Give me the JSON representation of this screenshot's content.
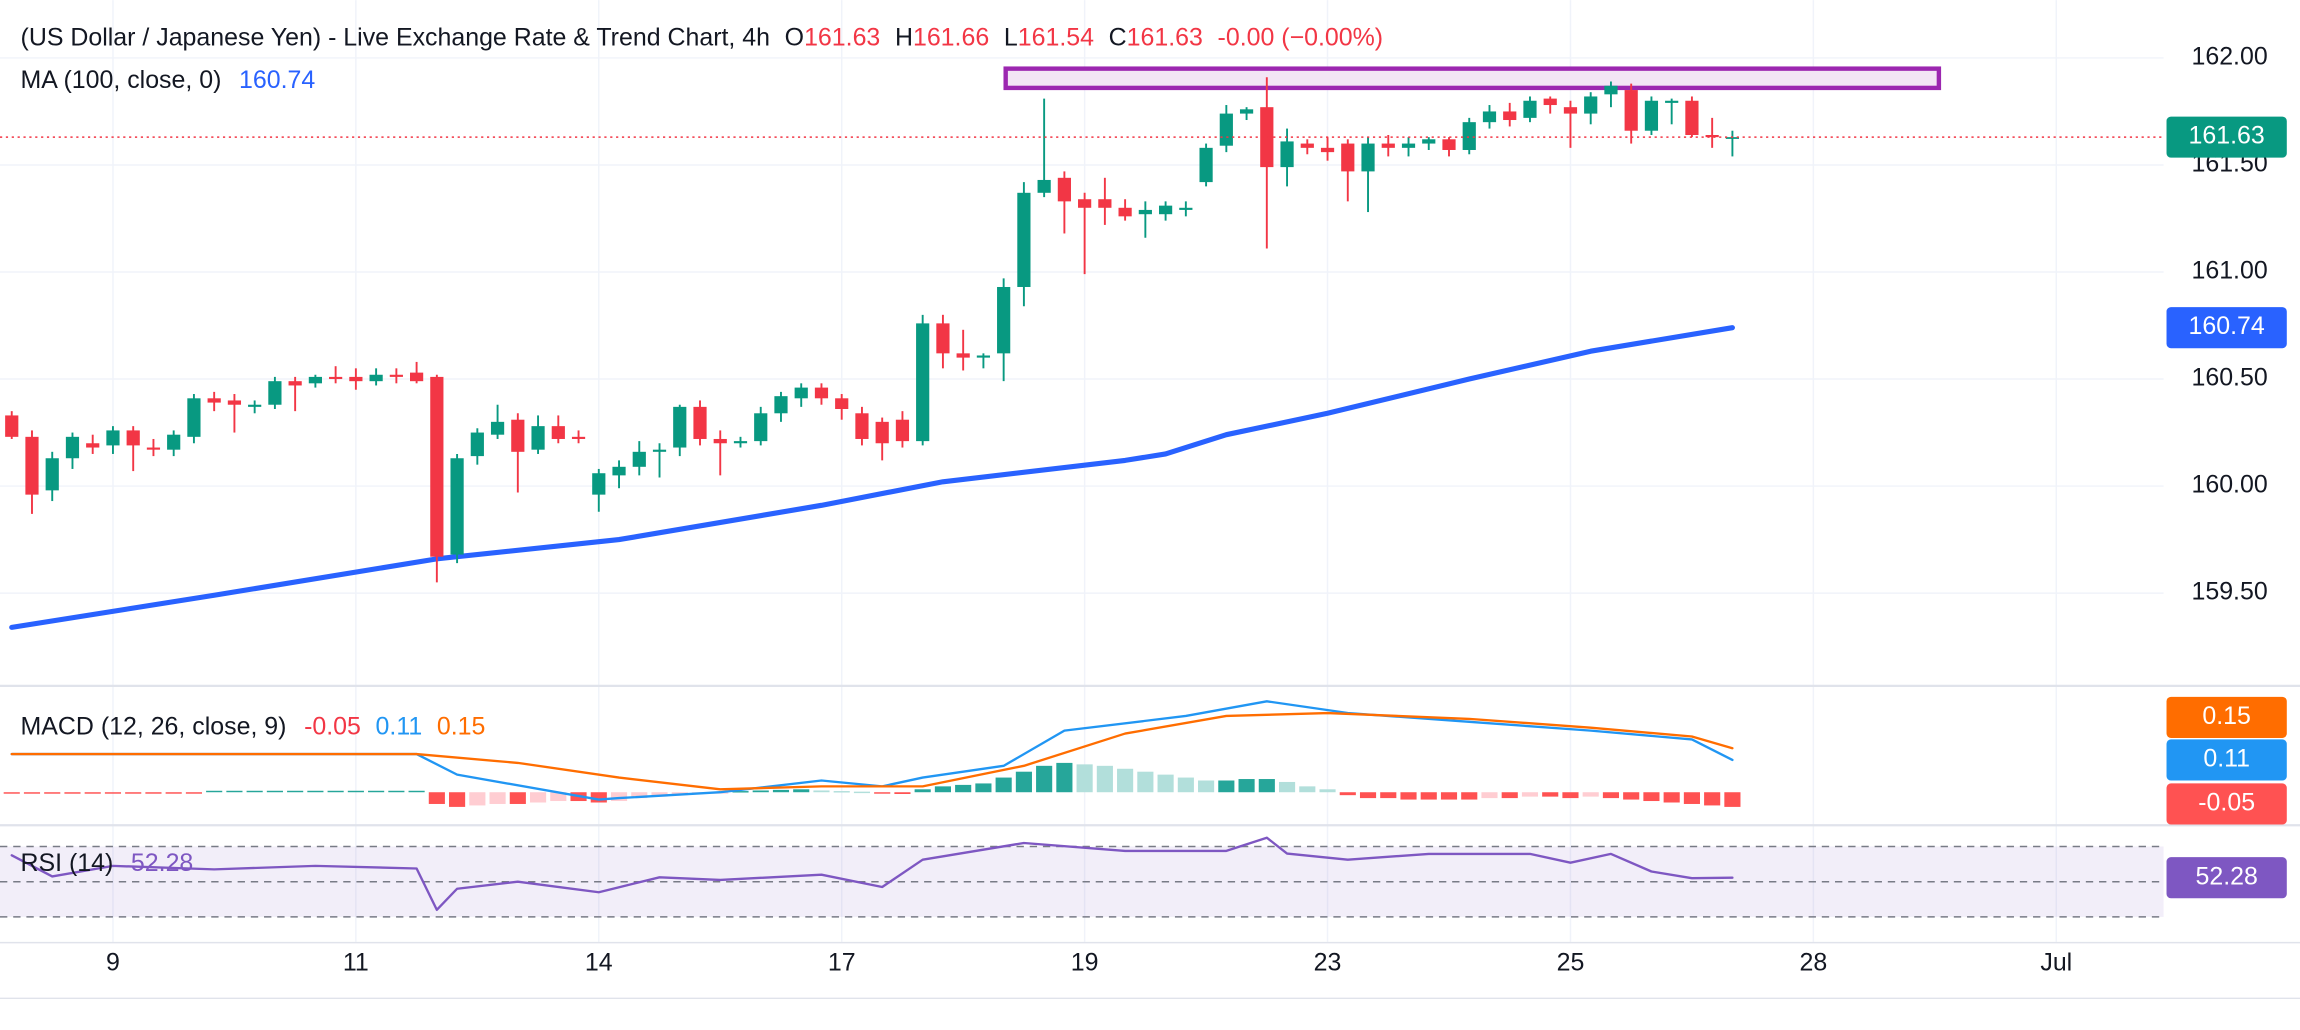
{
  "chart_data": {
    "type": "candlestick",
    "title": "(US Dollar / Japanese Yen) - Live Exchange Rate & Trend Chart, 4h",
    "ohlc_letters": [
      "O",
      "H",
      "L",
      "C"
    ],
    "change": "-0.00 (−0.00%)",
    "up_color": "#089981",
    "down_color": "#f23645",
    "xlim": [
      -0.58,
      106.3
    ],
    "ylim": [
      159.07,
      162.27
    ],
    "grid": true,
    "yticks": [
      {
        "value": 162,
        "label": "162.00"
      },
      {
        "value": 161.5,
        "label": "161.50"
      },
      {
        "value": 161,
        "label": "161.00"
      },
      {
        "value": 160.5,
        "label": "160.50"
      },
      {
        "value": 160,
        "label": "160.00"
      },
      {
        "value": 159.5,
        "label": "159.50"
      }
    ],
    "xticks": [
      {
        "value": 5,
        "label": "9"
      },
      {
        "value": 17,
        "label": "11"
      },
      {
        "value": 29,
        "label": "14"
      },
      {
        "value": 41,
        "label": "17"
      },
      {
        "value": 53,
        "label": "19"
      },
      {
        "value": 65,
        "label": "23"
      },
      {
        "value": 77,
        "label": "25"
      },
      {
        "value": 89,
        "label": "28"
      },
      {
        "value": 101,
        "label": "Jul"
      }
    ],
    "candles": [
      [
        160.33,
        160.35,
        160.22,
        160.23
      ],
      [
        160.23,
        160.26,
        159.87,
        159.96
      ],
      [
        159.98,
        160.16,
        159.93,
        160.13
      ],
      [
        160.13,
        160.25,
        160.08,
        160.23
      ],
      [
        160.2,
        160.24,
        160.15,
        160.18
      ],
      [
        160.19,
        160.28,
        160.15,
        160.26
      ],
      [
        160.26,
        160.28,
        160.07,
        160.19
      ],
      [
        160.18,
        160.22,
        160.14,
        160.17
      ],
      [
        160.17,
        160.26,
        160.14,
        160.24
      ],
      [
        160.23,
        160.43,
        160.2,
        160.41
      ],
      [
        160.41,
        160.44,
        160.35,
        160.39
      ],
      [
        160.4,
        160.43,
        160.25,
        160.38
      ],
      [
        160.37,
        160.4,
        160.34,
        160.38
      ],
      [
        160.38,
        160.51,
        160.36,
        160.49
      ],
      [
        160.49,
        160.51,
        160.35,
        160.47
      ],
      [
        160.48,
        160.52,
        160.46,
        160.51
      ],
      [
        160.51,
        160.56,
        160.48,
        160.5
      ],
      [
        160.51,
        160.55,
        160.45,
        160.49
      ],
      [
        160.49,
        160.55,
        160.47,
        160.52
      ],
      [
        160.52,
        160.55,
        160.48,
        160.51
      ],
      [
        160.53,
        160.58,
        160.48,
        160.49
      ],
      [
        160.51,
        160.52,
        159.55,
        159.67
      ],
      [
        159.68,
        160.15,
        159.64,
        160.13
      ],
      [
        160.14,
        160.27,
        160.1,
        160.25
      ],
      [
        160.24,
        160.38,
        160.22,
        160.3
      ],
      [
        160.31,
        160.34,
        159.97,
        160.16
      ],
      [
        160.17,
        160.33,
        160.15,
        160.28
      ],
      [
        160.28,
        160.33,
        160.2,
        160.22
      ],
      [
        160.23,
        160.26,
        160.2,
        160.22
      ],
      [
        159.96,
        160.08,
        159.88,
        160.06
      ],
      [
        160.05,
        160.12,
        159.99,
        160.09
      ],
      [
        160.09,
        160.21,
        160.05,
        160.16
      ],
      [
        160.16,
        160.2,
        160.04,
        160.17
      ],
      [
        160.18,
        160.38,
        160.14,
        160.37
      ],
      [
        160.37,
        160.4,
        160.19,
        160.22
      ],
      [
        160.22,
        160.26,
        160.05,
        160.2
      ],
      [
        160.2,
        160.23,
        160.18,
        160.21
      ],
      [
        160.21,
        160.37,
        160.19,
        160.34
      ],
      [
        160.34,
        160.44,
        160.3,
        160.42
      ],
      [
        160.41,
        160.48,
        160.37,
        160.46
      ],
      [
        160.46,
        160.48,
        160.38,
        160.41
      ],
      [
        160.41,
        160.43,
        160.31,
        160.36
      ],
      [
        160.34,
        160.37,
        160.19,
        160.22
      ],
      [
        160.3,
        160.32,
        160.12,
        160.2
      ],
      [
        160.31,
        160.35,
        160.18,
        160.21
      ],
      [
        160.21,
        160.8,
        160.19,
        160.76
      ],
      [
        160.76,
        160.8,
        160.55,
        160.62
      ],
      [
        160.62,
        160.73,
        160.54,
        160.6
      ],
      [
        160.6,
        160.62,
        160.55,
        160.61
      ],
      [
        160.62,
        160.97,
        160.49,
        160.93
      ],
      [
        160.93,
        161.42,
        160.84,
        161.37
      ],
      [
        161.37,
        161.81,
        161.35,
        161.43
      ],
      [
        161.44,
        161.47,
        161.18,
        161.33
      ],
      [
        161.34,
        161.37,
        160.99,
        161.3
      ],
      [
        161.34,
        161.44,
        161.22,
        161.3
      ],
      [
        161.3,
        161.34,
        161.24,
        161.26
      ],
      [
        161.27,
        161.33,
        161.16,
        161.29
      ],
      [
        161.27,
        161.33,
        161.24,
        161.31
      ],
      [
        161.29,
        161.33,
        161.26,
        161.3
      ],
      [
        161.42,
        161.6,
        161.4,
        161.58
      ],
      [
        161.59,
        161.78,
        161.56,
        161.74
      ],
      [
        161.74,
        161.77,
        161.71,
        161.76
      ],
      [
        161.77,
        161.91,
        161.11,
        161.49
      ],
      [
        161.49,
        161.67,
        161.4,
        161.61
      ],
      [
        161.6,
        161.62,
        161.55,
        161.58
      ],
      [
        161.58,
        161.63,
        161.52,
        161.56
      ],
      [
        161.6,
        161.62,
        161.33,
        161.47
      ],
      [
        161.47,
        161.63,
        161.28,
        161.6
      ],
      [
        161.6,
        161.64,
        161.54,
        161.58
      ],
      [
        161.58,
        161.63,
        161.54,
        161.6
      ],
      [
        161.6,
        161.63,
        161.57,
        161.62
      ],
      [
        161.62,
        161.63,
        161.54,
        161.57
      ],
      [
        161.57,
        161.72,
        161.55,
        161.7
      ],
      [
        161.7,
        161.78,
        161.67,
        161.75
      ],
      [
        161.75,
        161.79,
        161.68,
        161.71
      ],
      [
        161.72,
        161.82,
        161.7,
        161.8
      ],
      [
        161.81,
        161.82,
        161.74,
        161.78
      ],
      [
        161.77,
        161.8,
        161.58,
        161.74
      ],
      [
        161.74,
        161.84,
        161.69,
        161.82
      ],
      [
        161.83,
        161.89,
        161.77,
        161.87
      ],
      [
        161.85,
        161.88,
        161.6,
        161.66
      ],
      [
        161.66,
        161.82,
        161.64,
        161.8
      ],
      [
        161.79,
        161.81,
        161.69,
        161.8
      ],
      [
        161.8,
        161.82,
        161.63,
        161.64
      ],
      [
        161.64,
        161.72,
        161.58,
        161.63
      ],
      [
        161.63,
        161.66,
        161.54,
        161.63
      ]
    ],
    "ma": {
      "name": "MA (100, close, 0)",
      "color": "#2962ff",
      "x": [
        0,
        10,
        21,
        30,
        40,
        46,
        55,
        57,
        60,
        65,
        72,
        78,
        85
      ],
      "values": [
        159.34,
        159.49,
        159.66,
        159.75,
        159.91,
        160.02,
        160.12,
        160.15,
        160.24,
        160.34,
        160.5,
        160.63,
        160.74
      ]
    },
    "zone": {
      "color": "#9c27b0",
      "fill": "#f3e5f5",
      "x": [
        49.1,
        95.2
      ],
      "y": [
        161.86,
        161.95
      ]
    },
    "macd": {
      "name": "MACD (12, 26, close, 9)",
      "ylim": [
        -0.11,
        0.35
      ],
      "hist_colors": [
        "#26a69a",
        "#b2dfdb",
        "#ff5252",
        "#ffcdd2"
      ],
      "histogram": [
        -0.005,
        -0.005,
        -0.005,
        -0.005,
        -0.005,
        -0.005,
        -0.005,
        -0.005,
        -0.005,
        -0.005,
        0.005,
        0.005,
        0.005,
        0.005,
        0.005,
        0.005,
        0.005,
        0.005,
        0.005,
        0.005,
        0.005,
        -0.04,
        -0.05,
        -0.045,
        -0.04,
        -0.04,
        -0.035,
        -0.03,
        -0.03,
        -0.035,
        -0.03,
        -0.02,
        -0.015,
        -0.01,
        -0.005,
        -0.002,
        0.004,
        0.006,
        0.008,
        0.01,
        0.006,
        0.004,
        0.002,
        -0.002,
        -0.006,
        0.01,
        0.02,
        0.025,
        0.03,
        0.05,
        0.07,
        0.09,
        0.1,
        0.095,
        0.09,
        0.08,
        0.07,
        0.06,
        0.05,
        0.04,
        0.04,
        0.045,
        0.045,
        0.035,
        0.02,
        0.01,
        -0.01,
        -0.02,
        -0.02,
        -0.025,
        -0.025,
        -0.025,
        -0.025,
        -0.02,
        -0.02,
        -0.015,
        -0.015,
        -0.02,
        -0.015,
        -0.02,
        -0.025,
        -0.03,
        -0.035,
        -0.04,
        -0.045,
        -0.05
      ],
      "macd_line": {
        "color": "#2196f3",
        "x": [
          0,
          20,
          22,
          29,
          30,
          35,
          40,
          43,
          45,
          49,
          52,
          58,
          62,
          66,
          72,
          78,
          83,
          85
        ],
        "values": [
          0.13,
          0.13,
          0.06,
          -0.025,
          -0.02,
          0.0,
          0.04,
          0.02,
          0.05,
          0.09,
          0.21,
          0.26,
          0.31,
          0.27,
          0.24,
          0.21,
          0.18,
          0.11
        ]
      },
      "signal_line": {
        "color": "#ff6d00",
        "x": [
          0,
          20,
          25,
          30,
          35,
          40,
          45,
          50,
          55,
          60,
          65,
          72,
          78,
          83,
          85
        ],
        "values": [
          0.13,
          0.13,
          0.1,
          0.05,
          0.01,
          0.02,
          0.02,
          0.09,
          0.2,
          0.26,
          0.27,
          0.25,
          0.22,
          0.19,
          0.15
        ]
      }
    },
    "rsi": {
      "name": "RSI (14)",
      "color": "#7e57c2",
      "ylim": [
        17.5,
        80
      ],
      "levels": [
        70,
        50,
        30
      ],
      "x": [
        0,
        2,
        5,
        10,
        15,
        20,
        21,
        22,
        25,
        29,
        32,
        35,
        40,
        43,
        45,
        50,
        55,
        60,
        62,
        63,
        66,
        70,
        75,
        77,
        79,
        81,
        83,
        85
      ],
      "values": [
        65,
        53,
        59,
        57,
        59,
        57.5,
        34,
        46,
        50,
        44,
        52.5,
        51,
        54,
        47,
        62.5,
        72,
        67.5,
        67.5,
        75,
        66,
        62.5,
        65.8,
        65.8,
        60.8,
        65.8,
        55.8,
        52,
        52.28
      ]
    }
  }
}
